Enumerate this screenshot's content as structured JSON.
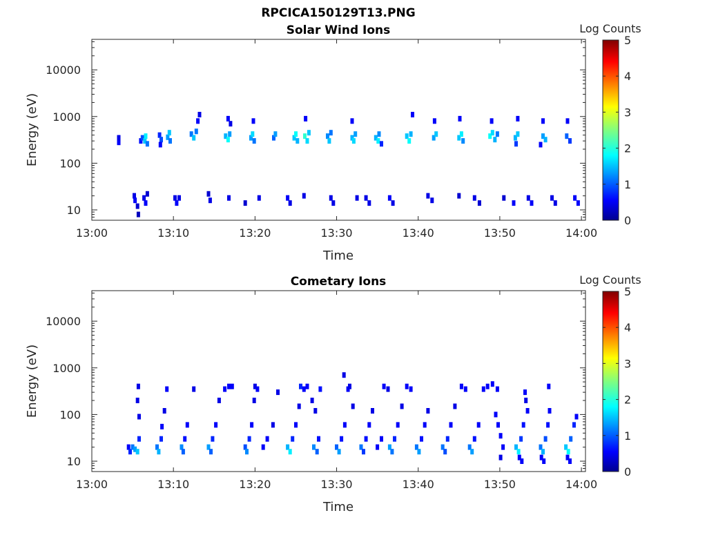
{
  "figure": {
    "title": "RPCICA150129T13.PNG"
  },
  "chart_data": [
    {
      "type": "heatmap",
      "title": "Solar Wind Ions",
      "xlabel": "Time",
      "ylabel": "Energy (eV)",
      "x_tick_labels": [
        "13:00",
        "13:10",
        "13:20",
        "13:30",
        "13:40",
        "13:50",
        "14:00"
      ],
      "x_ticks_min": [
        0,
        10,
        20,
        30,
        40,
        50,
        60
      ],
      "xlim_min": [
        0,
        60.5
      ],
      "y_tick_labels": [
        "10",
        "100",
        "1000",
        "10000"
      ],
      "y_ticks": [
        10,
        100,
        1000,
        10000
      ],
      "ylim": [
        6,
        45000
      ],
      "yscale": "log",
      "colorbar": {
        "label": "Log Counts",
        "ticks": [
          "0",
          "1",
          "2",
          "3",
          "4",
          "5"
        ],
        "range": [
          0,
          5
        ],
        "colormap": "jet"
      },
      "cells": [
        [
          3.3,
          280,
          0.6
        ],
        [
          3.3,
          350,
          0.5
        ],
        [
          5.2,
          20,
          0.5
        ],
        [
          5.3,
          16,
          0.6
        ],
        [
          5.6,
          12,
          0.4
        ],
        [
          5.7,
          8,
          0.3
        ],
        [
          6.0,
          300,
          0.7
        ],
        [
          6.2,
          350,
          1.0
        ],
        [
          6.5,
          300,
          1.6
        ],
        [
          6.6,
          380,
          1.8
        ],
        [
          6.8,
          260,
          1.2
        ],
        [
          6.4,
          18,
          0.5
        ],
        [
          6.6,
          14,
          0.6
        ],
        [
          6.8,
          22,
          0.4
        ],
        [
          8.3,
          400,
          0.8
        ],
        [
          8.5,
          320,
          1.0
        ],
        [
          8.4,
          250,
          0.6
        ],
        [
          9.3,
          360,
          1.4
        ],
        [
          9.5,
          450,
          1.6
        ],
        [
          9.6,
          300,
          1.2
        ],
        [
          10.2,
          18,
          0.5
        ],
        [
          10.4,
          14,
          0.6
        ],
        [
          10.7,
          18,
          0.5
        ],
        [
          12.2,
          420,
          1.2
        ],
        [
          12.5,
          350,
          1.6
        ],
        [
          12.8,
          480,
          1.2
        ],
        [
          13.0,
          800,
          0.6
        ],
        [
          13.2,
          1100,
          0.5
        ],
        [
          14.3,
          22,
          0.4
        ],
        [
          14.5,
          16,
          0.5
        ],
        [
          16.4,
          380,
          1.5
        ],
        [
          16.7,
          320,
          1.9
        ],
        [
          16.9,
          420,
          1.4
        ],
        [
          16.7,
          900,
          0.6
        ],
        [
          17.0,
          700,
          0.5
        ],
        [
          16.8,
          18,
          0.5
        ],
        [
          18.8,
          14,
          0.4
        ],
        [
          19.5,
          350,
          1.4
        ],
        [
          19.7,
          420,
          1.7
        ],
        [
          19.9,
          300,
          1.2
        ],
        [
          19.8,
          800,
          0.6
        ],
        [
          20.5,
          18,
          0.5
        ],
        [
          22.3,
          350,
          1.1
        ],
        [
          22.5,
          420,
          1.4
        ],
        [
          24.8,
          350,
          1.6
        ],
        [
          25.0,
          420,
          1.9
        ],
        [
          25.2,
          300,
          1.5
        ],
        [
          26.1,
          380,
          2.1
        ],
        [
          26.4,
          300,
          1.7
        ],
        [
          26.6,
          450,
          1.6
        ],
        [
          26.2,
          900,
          0.6
        ],
        [
          24.0,
          18,
          0.6
        ],
        [
          24.3,
          14,
          0.5
        ],
        [
          26.0,
          20,
          0.5
        ],
        [
          28.9,
          380,
          1.3
        ],
        [
          29.1,
          300,
          1.6
        ],
        [
          29.3,
          450,
          1.2
        ],
        [
          29.3,
          18,
          0.5
        ],
        [
          29.6,
          14,
          0.5
        ],
        [
          31.9,
          350,
          1.5
        ],
        [
          32.1,
          300,
          1.7
        ],
        [
          32.3,
          420,
          1.4
        ],
        [
          31.9,
          800,
          0.6
        ],
        [
          32.5,
          18,
          0.5
        ],
        [
          34.8,
          350,
          1.5
        ],
        [
          35.1,
          300,
          1.8
        ],
        [
          35.2,
          420,
          1.3
        ],
        [
          35.5,
          260,
          0.8
        ],
        [
          33.6,
          18,
          0.5
        ],
        [
          34.0,
          14,
          0.5
        ],
        [
          38.6,
          380,
          1.6
        ],
        [
          38.9,
          300,
          1.9
        ],
        [
          39.1,
          420,
          1.5
        ],
        [
          39.3,
          1100,
          0.6
        ],
        [
          36.5,
          18,
          0.6
        ],
        [
          36.9,
          14,
          0.5
        ],
        [
          41.9,
          350,
          1.4
        ],
        [
          42.2,
          420,
          1.6
        ],
        [
          42.0,
          800,
          0.6
        ],
        [
          41.2,
          20,
          0.5
        ],
        [
          41.7,
          16,
          0.5
        ],
        [
          45.0,
          20,
          0.4
        ],
        [
          45.0,
          350,
          1.6
        ],
        [
          45.3,
          420,
          1.8
        ],
        [
          45.5,
          300,
          1.3
        ],
        [
          45.1,
          900,
          0.6
        ],
        [
          48.8,
          380,
          1.9
        ],
        [
          49.1,
          450,
          1.7
        ],
        [
          49.4,
          320,
          1.5
        ],
        [
          49.7,
          420,
          1.2
        ],
        [
          49.0,
          800,
          0.6
        ],
        [
          46.9,
          18,
          0.5
        ],
        [
          47.5,
          14,
          0.4
        ],
        [
          51.9,
          350,
          1.5
        ],
        [
          52.2,
          420,
          1.6
        ],
        [
          52.0,
          260,
          0.9
        ],
        [
          52.2,
          900,
          0.6
        ],
        [
          50.5,
          18,
          0.4
        ],
        [
          51.7,
          14,
          0.6
        ],
        [
          55.3,
          380,
          1.4
        ],
        [
          55.6,
          320,
          1.5
        ],
        [
          55.0,
          250,
          0.6
        ],
        [
          55.3,
          800,
          0.6
        ],
        [
          53.5,
          18,
          0.5
        ],
        [
          53.9,
          14,
          0.6
        ],
        [
          56.4,
          18,
          0.5
        ],
        [
          56.8,
          14,
          0.5
        ],
        [
          58.2,
          380,
          1.1
        ],
        [
          58.6,
          300,
          0.9
        ],
        [
          58.3,
          800,
          0.6
        ],
        [
          59.2,
          18,
          0.6
        ],
        [
          59.6,
          14,
          0.6
        ]
      ]
    },
    {
      "type": "heatmap",
      "title": "Cometary Ions",
      "xlabel": "Time",
      "ylabel": "Energy (eV)",
      "x_tick_labels": [
        "13:00",
        "13:10",
        "13:20",
        "13:30",
        "13:40",
        "13:50",
        "14:00"
      ],
      "x_ticks_min": [
        0,
        10,
        20,
        30,
        40,
        50,
        60
      ],
      "xlim_min": [
        0,
        60.5
      ],
      "y_tick_labels": [
        "10",
        "100",
        "1000",
        "10000"
      ],
      "y_ticks": [
        10,
        100,
        1000,
        10000
      ],
      "ylim": [
        6,
        45000
      ],
      "yscale": "log",
      "colorbar": {
        "label": "Log Counts",
        "ticks": [
          "0",
          "1",
          "2",
          "3",
          "4",
          "5"
        ],
        "range": [
          0,
          5
        ],
        "colormap": "jet"
      },
      "cells": [
        [
          4.5,
          20,
          0.6
        ],
        [
          4.7,
          16,
          0.8
        ],
        [
          5.0,
          20,
          1.2
        ],
        [
          5.3,
          18,
          1.4
        ],
        [
          5.6,
          16,
          1.6
        ],
        [
          5.8,
          30,
          0.8
        ],
        [
          5.7,
          400,
          0.5
        ],
        [
          5.6,
          200,
          0.5
        ],
        [
          5.8,
          90,
          0.5
        ],
        [
          8.0,
          20,
          1.2
        ],
        [
          8.2,
          16,
          1.5
        ],
        [
          8.5,
          30,
          0.8
        ],
        [
          8.6,
          55,
          0.6
        ],
        [
          9.2,
          350,
          0.6
        ],
        [
          8.9,
          120,
          0.5
        ],
        [
          11.0,
          20,
          1.3
        ],
        [
          11.2,
          16,
          1.1
        ],
        [
          11.4,
          30,
          0.7
        ],
        [
          11.7,
          60,
          0.6
        ],
        [
          12.5,
          350,
          0.5
        ],
        [
          14.3,
          20,
          1.4
        ],
        [
          14.6,
          16,
          1.1
        ],
        [
          14.8,
          30,
          0.8
        ],
        [
          15.2,
          60,
          0.6
        ],
        [
          15.6,
          200,
          0.5
        ],
        [
          16.3,
          350,
          0.6
        ],
        [
          16.8,
          400,
          0.6
        ],
        [
          17.2,
          400,
          0.6
        ],
        [
          18.8,
          20,
          1.0
        ],
        [
          19.0,
          16,
          1.3
        ],
        [
          19.3,
          30,
          0.8
        ],
        [
          19.6,
          60,
          0.6
        ],
        [
          19.9,
          200,
          0.5
        ],
        [
          20.0,
          400,
          0.5
        ],
        [
          20.3,
          350,
          0.6
        ],
        [
          21.0,
          20,
          0.6
        ],
        [
          21.5,
          30,
          0.6
        ],
        [
          22.2,
          60,
          0.5
        ],
        [
          22.8,
          300,
          0.5
        ],
        [
          24.0,
          20,
          1.5
        ],
        [
          24.3,
          16,
          1.8
        ],
        [
          24.6,
          30,
          0.8
        ],
        [
          25.0,
          60,
          0.6
        ],
        [
          25.4,
          150,
          0.5
        ],
        [
          25.6,
          400,
          0.8
        ],
        [
          26.0,
          350,
          0.6
        ],
        [
          26.4,
          400,
          0.6
        ],
        [
          27.0,
          200,
          0.5
        ],
        [
          27.4,
          120,
          0.5
        ],
        [
          27.2,
          20,
          1.3
        ],
        [
          27.6,
          16,
          1.1
        ],
        [
          27.8,
          30,
          0.7
        ],
        [
          28.0,
          350,
          0.7
        ],
        [
          30.0,
          20,
          1.1
        ],
        [
          30.3,
          16,
          1.4
        ],
        [
          30.6,
          30,
          0.7
        ],
        [
          31.0,
          60,
          0.6
        ],
        [
          31.4,
          350,
          0.6
        ],
        [
          30.9,
          700,
          0.5
        ],
        [
          31.6,
          400,
          0.5
        ],
        [
          32.0,
          150,
          0.5
        ],
        [
          33.0,
          20,
          1.2
        ],
        [
          33.3,
          16,
          0.9
        ],
        [
          33.6,
          30,
          0.7
        ],
        [
          34.0,
          60,
          0.6
        ],
        [
          34.4,
          120,
          0.5
        ],
        [
          35.0,
          20,
          0.6
        ],
        [
          35.5,
          30,
          0.6
        ],
        [
          35.8,
          400,
          0.6
        ],
        [
          36.3,
          350,
          0.5
        ],
        [
          36.5,
          20,
          1.4
        ],
        [
          36.8,
          16,
          1.2
        ],
        [
          37.1,
          30,
          0.8
        ],
        [
          37.5,
          60,
          0.6
        ],
        [
          38.0,
          150,
          0.5
        ],
        [
          38.6,
          400,
          0.6
        ],
        [
          39.1,
          350,
          0.6
        ],
        [
          39.8,
          20,
          1.2
        ],
        [
          40.1,
          16,
          1.4
        ],
        [
          40.4,
          30,
          0.7
        ],
        [
          40.8,
          60,
          0.6
        ],
        [
          41.2,
          120,
          0.5
        ],
        [
          43.0,
          20,
          1.2
        ],
        [
          43.3,
          16,
          1.0
        ],
        [
          43.6,
          30,
          0.8
        ],
        [
          44.0,
          60,
          0.6
        ],
        [
          44.5,
          150,
          0.5
        ],
        [
          45.3,
          400,
          0.6
        ],
        [
          45.8,
          350,
          0.6
        ],
        [
          46.3,
          20,
          1.2
        ],
        [
          46.6,
          16,
          1.4
        ],
        [
          46.9,
          30,
          0.7
        ],
        [
          47.4,
          60,
          0.6
        ],
        [
          48.0,
          350,
          0.6
        ],
        [
          48.5,
          400,
          0.6
        ],
        [
          49.1,
          450,
          0.6
        ],
        [
          49.7,
          350,
          0.6
        ],
        [
          49.5,
          100,
          0.6
        ],
        [
          49.8,
          60,
          0.6
        ],
        [
          50.1,
          35,
          0.6
        ],
        [
          50.4,
          20,
          0.6
        ],
        [
          50.1,
          12,
          0.5
        ],
        [
          52.0,
          20,
          1.5
        ],
        [
          52.3,
          16,
          1.8
        ],
        [
          52.6,
          30,
          0.9
        ],
        [
          52.9,
          60,
          0.7
        ],
        [
          53.4,
          120,
          0.6
        ],
        [
          53.1,
          300,
          0.6
        ],
        [
          52.4,
          12,
          0.6
        ],
        [
          52.7,
          10,
          0.6
        ],
        [
          53.2,
          200,
          0.5
        ],
        [
          55.0,
          20,
          1.2
        ],
        [
          55.3,
          16,
          1.5
        ],
        [
          55.6,
          30,
          1.0
        ],
        [
          55.9,
          60,
          0.7
        ],
        [
          56.1,
          120,
          0.6
        ],
        [
          55.1,
          12,
          0.6
        ],
        [
          55.4,
          10,
          0.6
        ],
        [
          56.0,
          400,
          0.6
        ],
        [
          58.1,
          20,
          1.6
        ],
        [
          58.4,
          16,
          1.9
        ],
        [
          58.7,
          30,
          1.1
        ],
        [
          59.1,
          60,
          0.8
        ],
        [
          59.4,
          90,
          0.6
        ],
        [
          58.3,
          12,
          0.6
        ],
        [
          58.6,
          10,
          0.6
        ]
      ]
    }
  ]
}
